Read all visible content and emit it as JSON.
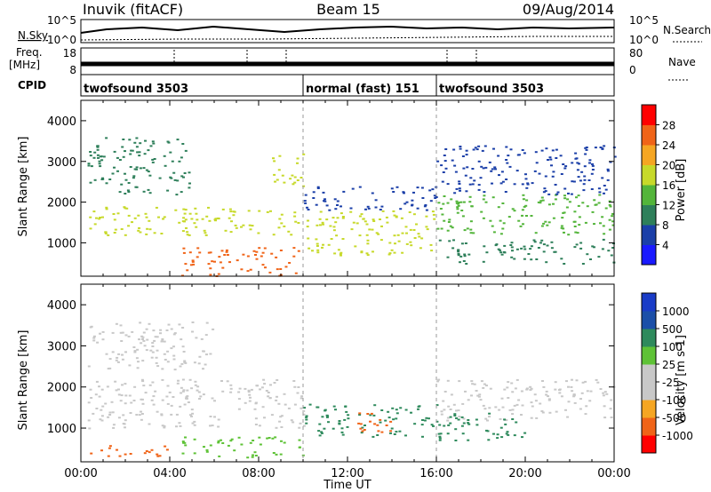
{
  "header": {
    "station": "Inuvik (fitACF)",
    "beam": "Beam 15",
    "date": "09/Aug/2014"
  },
  "sky_panel": {
    "left_label": "N.Sky",
    "left_ticks": [
      "10^5",
      "10^0"
    ],
    "right_ticks": [
      "10^5",
      "10^0"
    ],
    "right_label": "N.Search"
  },
  "freq_panel": {
    "left_label_1": "Freq.",
    "left_label_2": "[MHz]",
    "left_ticks": [
      "18",
      "8"
    ],
    "right_ticks": [
      "80",
      "0"
    ],
    "right_label": "Nave"
  },
  "cpid": {
    "label": "CPID",
    "segments": [
      {
        "name": "twofsound 3503",
        "start_h": 0,
        "end_h": 10
      },
      {
        "name": "normal (fast) 151",
        "start_h": 10,
        "end_h": 16
      },
      {
        "name": "twofsound 3503",
        "start_h": 16,
        "end_h": 24
      }
    ]
  },
  "axes": {
    "ylabel": "Slant Range [km]",
    "xlabel": "Time UT",
    "x_ticks": [
      "00:00",
      "04:00",
      "08:00",
      "12:00",
      "16:00",
      "20:00",
      "00:00"
    ]
  },
  "colors": {
    "power": [
      "#1a1aff",
      "#1b3fa8",
      "#2e7f5a",
      "#53b53a",
      "#c7d92a",
      "#f5a623",
      "#f06418",
      "#ff0000"
    ],
    "velocity": [
      "#ff0000",
      "#f06418",
      "#f5a623",
      "#c8c8c8",
      "#c8c8c8",
      "#5ec236",
      "#2e8a5c",
      "#1b4fa8",
      "#1a3cc7"
    ]
  },
  "chart_data": [
    {
      "type": "heatmap",
      "title": "Power",
      "xlabel": "Time UT",
      "ylabel": "Slant Range [km]",
      "xlim_hours": [
        0,
        24
      ],
      "ylim_km": [
        180,
        4500
      ],
      "y_ticks": [
        1000,
        2000,
        3000,
        4000
      ],
      "colorbar_label": "Power [dB]",
      "colorbar_ticks": [
        "4",
        "8",
        "12",
        "16",
        "20",
        "24",
        "28"
      ],
      "regions": [
        {
          "t0": 0.3,
          "t1": 10,
          "r0": 1200,
          "r1": 1900,
          "level": 20
        },
        {
          "t0": 0.3,
          "t1": 5,
          "r0": 2200,
          "r1": 3600,
          "level": 12
        },
        {
          "t0": 4.5,
          "t1": 9.8,
          "r0": 200,
          "r1": 900,
          "level": 28
        },
        {
          "t0": 8.5,
          "t1": 10,
          "r0": 2400,
          "r1": 3200,
          "level": 20
        },
        {
          "t0": 10,
          "t1": 16,
          "r0": 700,
          "r1": 1800,
          "level": 20
        },
        {
          "t0": 10,
          "t1": 16,
          "r0": 1800,
          "r1": 2400,
          "level": 8
        },
        {
          "t0": 16,
          "t1": 24,
          "r0": 1200,
          "r1": 2200,
          "level": 16
        },
        {
          "t0": 16,
          "t1": 24,
          "r0": 500,
          "r1": 1100,
          "level": 12
        },
        {
          "t0": 16,
          "t1": 24,
          "r0": 2200,
          "r1": 3400,
          "level": 8
        }
      ]
    },
    {
      "type": "heatmap",
      "title": "Velocity",
      "xlabel": "Time UT",
      "ylabel": "Slant Range [km]",
      "xlim_hours": [
        0,
        24
      ],
      "ylim_km": [
        180,
        4500
      ],
      "y_ticks": [
        1000,
        2000,
        3000,
        4000
      ],
      "colorbar_label": "Velocity [m s-1]",
      "colorbar_ticks": [
        "-1000",
        "-500",
        "-100",
        "-25",
        "25",
        "100",
        "500",
        "1000"
      ],
      "regions": [
        {
          "t0": 0.3,
          "t1": 10,
          "r0": 1000,
          "r1": 2200,
          "level": 0
        },
        {
          "t0": 0.3,
          "t1": 6,
          "r0": 2400,
          "r1": 3600,
          "level": 0
        },
        {
          "t0": 0.3,
          "t1": 4,
          "r0": 300,
          "r1": 600,
          "level": -500
        },
        {
          "t0": 4.5,
          "t1": 10,
          "r0": 300,
          "r1": 800,
          "level": 100
        },
        {
          "t0": 10,
          "t1": 16,
          "r0": 800,
          "r1": 1600,
          "level": 500
        },
        {
          "t0": 12,
          "t1": 14,
          "r0": 900,
          "r1": 1400,
          "level": -500
        },
        {
          "t0": 16,
          "t1": 24,
          "r0": 1200,
          "r1": 2200,
          "level": 0
        },
        {
          "t0": 16,
          "t1": 20,
          "r0": 700,
          "r1": 1400,
          "level": 500
        }
      ]
    }
  ]
}
